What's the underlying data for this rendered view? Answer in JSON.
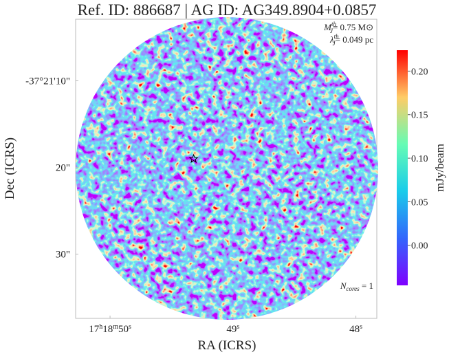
{
  "chart_data": {
    "type": "image",
    "title": "Ref. ID: 886687 | AG ID: AG349.8904+0.0857",
    "x_label": "RA (ICRS)",
    "y_label": "Dec (ICRS)",
    "xlim": [
      50.28,
      47.83
    ],
    "xticks": [
      {
        "value": 50,
        "label": "17h18m50s"
      },
      {
        "value": 49,
        "label": "49s"
      },
      {
        "value": 48,
        "label": "48s"
      }
    ],
    "ylim": [
      2.9,
      37.4
    ],
    "yticks": [
      {
        "value": 10,
        "label": "-37°21'10\""
      },
      {
        "value": 20,
        "label": "20\""
      },
      {
        "value": 30,
        "label": "30\""
      }
    ],
    "colorbar": {
      "label": "mJy/beam",
      "lim": [
        -0.046,
        0.224
      ],
      "ticks": [
        {
          "value": 0,
          "label": "0.00"
        },
        {
          "value": 0.05,
          "label": "0.05"
        },
        {
          "value": 0.1,
          "label": "0.10"
        },
        {
          "value": 0.15,
          "label": "0.15"
        },
        {
          "value": 0.2,
          "label": "0.20"
        }
      ]
    },
    "annotations": [
      {
        "base": "M",
        "sup": "th",
        "sub": "J",
        "text": "= 0.75 M⊙"
      },
      {
        "base": "λ",
        "sup": "th",
        "sub": "J",
        "text": "= 0.049 pc"
      },
      {
        "base": "N",
        "sub": "cores",
        "text": " = 1"
      }
    ],
    "cores": {
      "ra": [
        49.32
      ],
      "dec": [
        19.0
      ]
    }
  }
}
